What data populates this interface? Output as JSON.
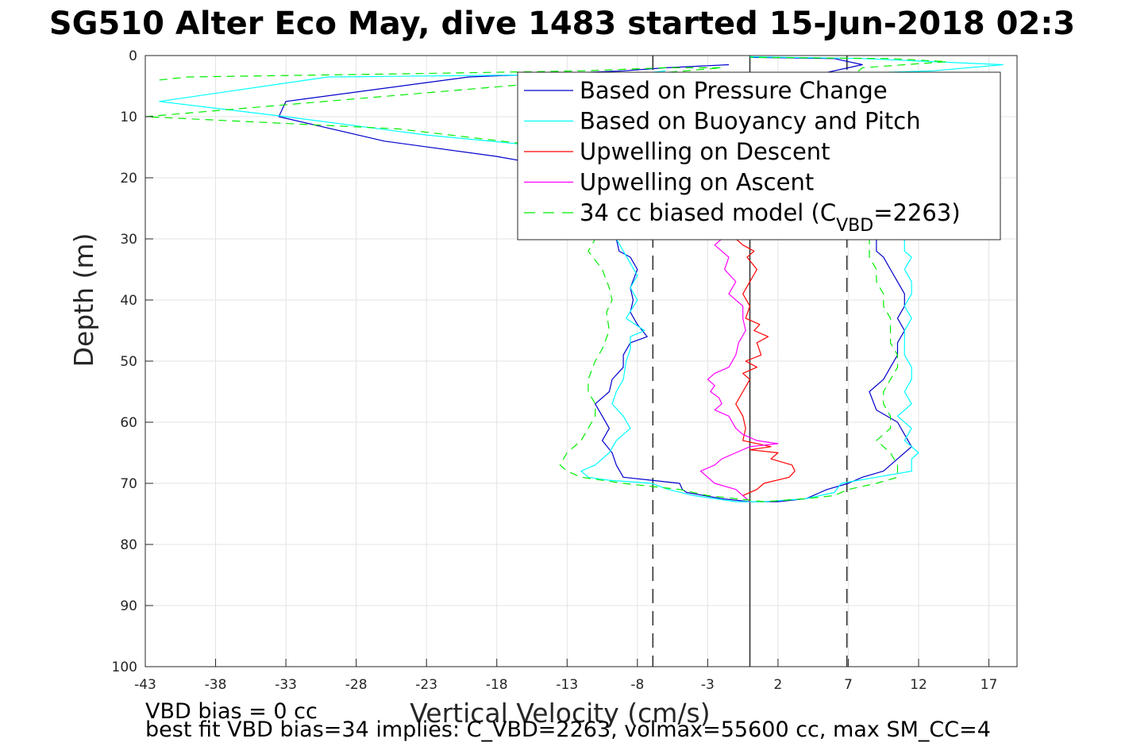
{
  "chart_data": {
    "type": "line",
    "title": "SG510 Alter Eco May, dive 1483 started 15-Jun-2018 02:3",
    "xlabel": "Vertical Velocity (cm/s)",
    "ylabel": "Depth (m)",
    "xlim": [
      -43,
      19
    ],
    "ylim": [
      0,
      100
    ],
    "y_reversed": true,
    "grid": true,
    "xticks": [
      "-43",
      "-38",
      "-33",
      "-28",
      "-23",
      "-18",
      "-13",
      "-8",
      "-3",
      "2",
      "7",
      "12",
      "17"
    ],
    "xtick_values": [
      -43,
      -38,
      -33,
      -28,
      -23,
      -18,
      -13,
      -8,
      -3,
      2,
      7,
      12,
      17
    ],
    "yticks": [
      "0",
      "10",
      "20",
      "30",
      "40",
      "50",
      "60",
      "70",
      "80",
      "90",
      "100"
    ],
    "ytick_values": [
      0,
      10,
      20,
      30,
      40,
      50,
      60,
      70,
      80,
      90,
      100
    ],
    "legend_position": "top-right",
    "legend": [
      {
        "text": "Based on Pressure Change",
        "sub": "",
        "tail": "",
        "color": "#0000cc",
        "dash": ""
      },
      {
        "text": "Based on Buoyancy and Pitch",
        "sub": "",
        "tail": "",
        "color": "#00ffff",
        "dash": ""
      },
      {
        "text": "Upwelling on Descent",
        "sub": "",
        "tail": "",
        "color": "#ff0000",
        "dash": ""
      },
      {
        "text": "Upwelling on Ascent",
        "sub": "",
        "tail": "",
        "color": "#ff00ff",
        "dash": ""
      },
      {
        "text": "34 cc biased model (C",
        "sub": "VBD",
        "tail": "=2263)",
        "color": "#00ee00",
        "dash": "14,10"
      }
    ],
    "reference_lines": [
      {
        "x": -6.9,
        "style": "dashed",
        "color": "#333333"
      },
      {
        "x": 0,
        "style": "solid",
        "color": "#333333"
      },
      {
        "x": 6.9,
        "style": "dashed",
        "color": "#333333"
      }
    ],
    "series": [
      {
        "color": "#0000cc",
        "dash": "",
        "points": [
          [
            -1.5,
            1.5
          ],
          [
            -6,
            2
          ],
          [
            -9,
            2.5
          ],
          [
            -20,
            3.5
          ],
          [
            -33,
            7.5
          ],
          [
            -33.5,
            10
          ],
          [
            -26,
            14
          ],
          [
            -18,
            16.5
          ],
          [
            -12,
            19
          ],
          [
            -10.5,
            22
          ],
          [
            -9.5,
            26
          ],
          [
            -9.5,
            30
          ],
          [
            -9.3,
            32
          ],
          [
            -8.5,
            33
          ],
          [
            -8,
            35
          ],
          [
            -8.5,
            38
          ],
          [
            -8.3,
            40
          ],
          [
            -8.5,
            42
          ],
          [
            -8,
            44
          ],
          [
            -7.3,
            46
          ],
          [
            -8.5,
            47
          ],
          [
            -9,
            49
          ],
          [
            -9,
            51
          ],
          [
            -9.8,
            53
          ],
          [
            -10,
            55
          ],
          [
            -11,
            57
          ],
          [
            -10.5,
            59
          ],
          [
            -10,
            61
          ],
          [
            -10.5,
            63
          ],
          [
            -9.8,
            65
          ],
          [
            -9.5,
            67
          ],
          [
            -9,
            69
          ],
          [
            -7,
            69.5
          ],
          [
            -5,
            70
          ],
          [
            -4.8,
            71
          ],
          [
            -4.5,
            71.5
          ],
          [
            -2,
            72.5
          ],
          [
            0,
            73
          ],
          [
            2,
            73
          ],
          [
            4,
            72.5
          ],
          [
            5,
            71.5
          ],
          [
            5.5,
            71
          ],
          [
            7,
            70
          ],
          [
            8,
            69
          ],
          [
            9.5,
            68
          ],
          [
            10,
            67
          ],
          [
            10.5,
            66
          ],
          [
            11.5,
            64
          ],
          [
            11,
            62
          ],
          [
            10.5,
            60
          ],
          [
            9,
            58
          ],
          [
            8.5,
            55
          ],
          [
            9.5,
            53
          ],
          [
            10,
            51
          ],
          [
            10.5,
            49
          ],
          [
            10.5,
            47
          ],
          [
            11,
            45
          ],
          [
            10.5,
            43
          ],
          [
            11,
            41
          ],
          [
            11,
            39
          ],
          [
            10.5,
            37
          ],
          [
            10,
            35
          ],
          [
            9.5,
            33
          ],
          [
            9,
            32
          ],
          [
            9,
            30
          ],
          [
            9,
            26
          ],
          [
            8.5,
            22
          ],
          [
            7,
            20
          ],
          [
            6,
            17
          ],
          [
            6,
            13
          ],
          [
            6,
            9
          ],
          [
            5.5,
            5
          ],
          [
            5,
            3
          ],
          [
            8,
            1.5
          ],
          [
            6,
            0.5
          ],
          [
            0,
            0.3
          ]
        ]
      },
      {
        "color": "#00ffff",
        "dash": "",
        "points": [
          [
            -6,
            2.5
          ],
          [
            -8,
            3
          ],
          [
            -30,
            3.5
          ],
          [
            -42,
            7.5
          ],
          [
            -33,
            10
          ],
          [
            -23,
            13
          ],
          [
            -14,
            15
          ],
          [
            -11,
            18
          ],
          [
            -10.5,
            22
          ],
          [
            -10,
            26
          ],
          [
            -9.5,
            30
          ],
          [
            -9,
            32
          ],
          [
            -8.5,
            34
          ],
          [
            -8,
            36
          ],
          [
            -8.5,
            38
          ],
          [
            -8,
            40
          ],
          [
            -8.8,
            43
          ],
          [
            -7.5,
            45
          ],
          [
            -8.5,
            46
          ],
          [
            -8.5,
            48
          ],
          [
            -8.8,
            50
          ],
          [
            -9,
            53
          ],
          [
            -9.5,
            55
          ],
          [
            -9.8,
            57
          ],
          [
            -9,
            59
          ],
          [
            -8.5,
            61
          ],
          [
            -9.5,
            63
          ],
          [
            -10,
            65
          ],
          [
            -11,
            67
          ],
          [
            -12,
            68
          ],
          [
            -11.5,
            69
          ],
          [
            -10,
            69.5
          ],
          [
            -7,
            70
          ],
          [
            -5.8,
            71
          ],
          [
            -4,
            72
          ],
          [
            -1,
            73
          ],
          [
            1,
            73
          ],
          [
            4,
            72.5
          ],
          [
            6,
            71.5
          ],
          [
            6.5,
            70
          ],
          [
            9,
            69
          ],
          [
            11.5,
            68
          ],
          [
            11.5,
            66
          ],
          [
            12,
            65
          ],
          [
            11,
            63
          ],
          [
            11.5,
            61
          ],
          [
            10.5,
            59
          ],
          [
            11.5,
            57
          ],
          [
            11,
            55
          ],
          [
            11.5,
            53
          ],
          [
            11.5,
            51
          ],
          [
            11,
            49
          ],
          [
            11,
            47
          ],
          [
            11,
            45
          ],
          [
            11.5,
            43
          ],
          [
            11,
            41
          ],
          [
            11.5,
            39
          ],
          [
            11.5,
            37
          ],
          [
            11,
            35
          ],
          [
            11.5,
            33
          ],
          [
            11,
            32
          ],
          [
            11,
            30
          ],
          [
            10.5,
            26
          ],
          [
            10,
            22
          ],
          [
            9,
            19
          ],
          [
            8,
            15
          ],
          [
            7,
            11
          ],
          [
            6.5,
            7
          ],
          [
            6,
            3
          ],
          [
            13,
            2.5
          ],
          [
            18,
            1.5
          ],
          [
            8,
            0.5
          ],
          [
            0,
            0.2
          ]
        ]
      },
      {
        "color": "#ff0000",
        "dash": "",
        "points": [
          [
            -1,
            30
          ],
          [
            -0.5,
            31
          ],
          [
            0.3,
            32
          ],
          [
            -0.2,
            33
          ],
          [
            0.5,
            35
          ],
          [
            0,
            37
          ],
          [
            -0.5,
            39
          ],
          [
            0,
            41
          ],
          [
            -0.3,
            43
          ],
          [
            0.7,
            44
          ],
          [
            0.3,
            45
          ],
          [
            1.3,
            46
          ],
          [
            0.5,
            47
          ],
          [
            0.8,
            49
          ],
          [
            -0.3,
            50
          ],
          [
            0.5,
            51
          ],
          [
            -0.5,
            52
          ],
          [
            0,
            53
          ],
          [
            -0.5,
            55
          ],
          [
            -1,
            57
          ],
          [
            -0.5,
            59
          ],
          [
            -0.3,
            61
          ],
          [
            -0.5,
            63
          ],
          [
            1.5,
            64
          ],
          [
            0,
            64.5
          ],
          [
            2,
            65
          ],
          [
            1.5,
            66
          ],
          [
            3,
            67
          ],
          [
            3.2,
            68
          ],
          [
            2.8,
            69
          ],
          [
            1,
            70
          ],
          [
            0.5,
            71
          ],
          [
            -0.5,
            72
          ],
          [
            0,
            73
          ]
        ]
      },
      {
        "color": "#ff00ff",
        "dash": "",
        "points": [
          [
            -2,
            30
          ],
          [
            -2.5,
            31
          ],
          [
            -2,
            32
          ],
          [
            -1.5,
            33
          ],
          [
            -1.8,
            35
          ],
          [
            -1,
            37
          ],
          [
            -1.5,
            39
          ],
          [
            -0.5,
            41
          ],
          [
            -0.5,
            43
          ],
          [
            -0.3,
            45
          ],
          [
            -0.8,
            47
          ],
          [
            -1,
            49
          ],
          [
            -1.5,
            51
          ],
          [
            -2.5,
            52
          ],
          [
            -3,
            53
          ],
          [
            -2.5,
            54
          ],
          [
            -2.8,
            55
          ],
          [
            -2.2,
            56
          ],
          [
            -2,
            57
          ],
          [
            -2.5,
            58
          ],
          [
            -1.5,
            59
          ],
          [
            -1,
            61
          ],
          [
            -0.5,
            62
          ],
          [
            0.5,
            63
          ],
          [
            2,
            63.5
          ],
          [
            0,
            64
          ],
          [
            -1,
            65
          ],
          [
            -2,
            66
          ],
          [
            -2.5,
            67
          ],
          [
            -3.5,
            68
          ],
          [
            -3,
            69
          ],
          [
            -2.5,
            70
          ],
          [
            -1,
            71
          ],
          [
            -0.5,
            72
          ],
          [
            0,
            73
          ]
        ]
      },
      {
        "color": "#00ee00",
        "dash": "10,7",
        "points": [
          [
            -42,
            4
          ],
          [
            -40,
            3.5
          ],
          [
            -25,
            3
          ],
          [
            -12,
            2.5
          ],
          [
            -6,
            2
          ],
          [
            -2,
            2
          ],
          [
            -43,
            10
          ],
          [
            -25,
            12
          ],
          [
            -14,
            15
          ],
          [
            -12,
            18
          ],
          [
            -11,
            22
          ],
          [
            -10.5,
            26
          ],
          [
            -11,
            30
          ],
          [
            -11.5,
            32
          ],
          [
            -10.5,
            35
          ],
          [
            -10,
            38
          ],
          [
            -9.8,
            40
          ],
          [
            -10.2,
            42
          ],
          [
            -10,
            45
          ],
          [
            -10.5,
            48
          ],
          [
            -11,
            50
          ],
          [
            -11.5,
            53
          ],
          [
            -11.5,
            55
          ],
          [
            -11,
            57
          ],
          [
            -11,
            59
          ],
          [
            -11.5,
            61
          ],
          [
            -12,
            63
          ],
          [
            -13,
            65
          ],
          [
            -13.5,
            67
          ],
          [
            -13,
            68
          ],
          [
            -12,
            69
          ],
          [
            -9,
            70
          ],
          [
            -7,
            70.5
          ],
          [
            -5,
            71
          ],
          [
            -3,
            72
          ],
          [
            -1,
            72.5
          ],
          [
            1,
            73
          ],
          [
            4,
            72.5
          ],
          [
            6,
            72
          ],
          [
            7,
            71
          ],
          [
            9,
            70
          ],
          [
            10.5,
            69
          ],
          [
            10.5,
            67
          ],
          [
            10,
            65
          ],
          [
            9,
            63
          ],
          [
            10,
            61
          ],
          [
            10,
            59
          ],
          [
            9.5,
            57
          ],
          [
            9.5,
            55
          ],
          [
            10,
            53
          ],
          [
            10.5,
            51
          ],
          [
            10.5,
            49
          ],
          [
            10,
            47
          ],
          [
            10,
            45
          ],
          [
            10,
            43
          ],
          [
            9.5,
            41
          ],
          [
            9.5,
            39
          ],
          [
            9,
            37
          ],
          [
            9,
            35
          ],
          [
            8.5,
            33
          ],
          [
            8.5,
            30
          ],
          [
            8,
            26
          ],
          [
            7.5,
            22
          ],
          [
            7,
            18
          ],
          [
            6.5,
            14
          ],
          [
            6,
            10
          ],
          [
            6,
            6
          ],
          [
            8,
            2
          ],
          [
            14,
            1
          ],
          [
            10,
            0.5
          ],
          [
            0,
            0.3
          ]
        ]
      }
    ],
    "notes": [
      "VBD bias = 0 cc",
      "best fit VBD bias=34 implies: C_VBD=2263, volmax=55600 cc, max SM_CC=4"
    ]
  }
}
